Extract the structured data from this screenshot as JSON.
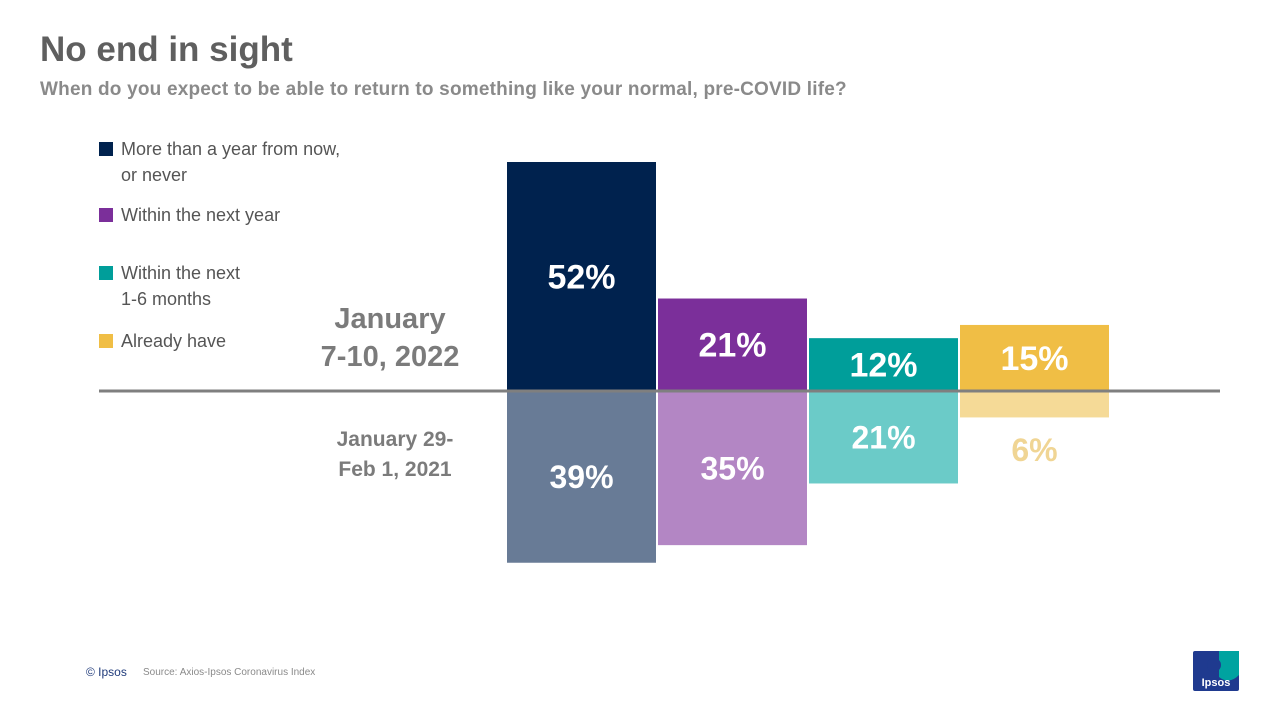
{
  "title": "No end in sight",
  "subtitle": "When do you expect to be able to return to something like your normal, pre-COVID life?",
  "legend": [
    {
      "label": "More than a year from now,\nor never",
      "color": "#00224e"
    },
    {
      "label": "Within the next year",
      "color": "#7b2f9a"
    },
    {
      "label": "Within the next\n1-6 months",
      "color": "#009e9a"
    },
    {
      "label": "Already have",
      "color": "#f0be45"
    }
  ],
  "periods": {
    "current": "January\n7-10, 2022",
    "previous": "January 29-\nFeb 1, 2021"
  },
  "footer": {
    "copyright": "© Ipsos",
    "source": "Source: Axios-Ipsos Coronavirus Index"
  },
  "logo": {
    "text": "Ipsos",
    "color": "#1f3a8f",
    "accent": "#00a3a0"
  },
  "chart_data": {
    "type": "bar",
    "categories": [
      "More than a year from now, or never",
      "Within the next year",
      "Within the next 1-6 months",
      "Already have"
    ],
    "series": [
      {
        "name": "January 7-10, 2022",
        "values": [
          52,
          21,
          12,
          15
        ],
        "labels": [
          "52%",
          "21%",
          "12%",
          "15%"
        ],
        "colors": [
          "#00224e",
          "#7b2f9a",
          "#009e9a",
          "#f0be45"
        ],
        "label_colors": [
          "#ffffff",
          "#ffffff",
          "#ffffff",
          "#ffffff"
        ]
      },
      {
        "name": "January 29-Feb 1, 2021",
        "values": [
          39,
          35,
          21,
          6
        ],
        "labels": [
          "39%",
          "35%",
          "21%",
          "6%"
        ],
        "colors": [
          "#687b96",
          "#b386c4",
          "#6bcbc8",
          "#f5da97"
        ],
        "label_colors": [
          "#ffffff",
          "#ffffff",
          "#ffffff",
          "#f0d594"
        ]
      }
    ],
    "ylim": [
      0,
      52
    ],
    "legend_position": "left",
    "grid": false
  }
}
